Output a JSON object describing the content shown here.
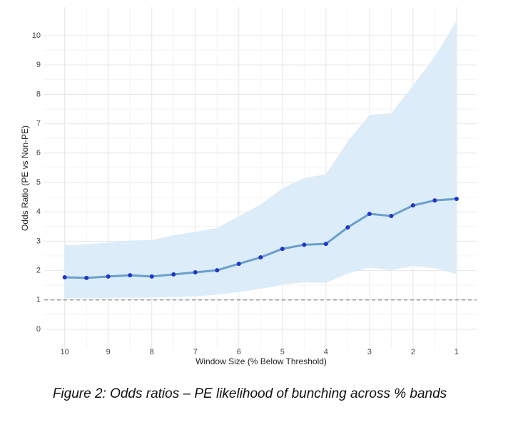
{
  "chart_data": {
    "type": "line",
    "x_label": "Window Size (% Below Threshold)",
    "y_label": "Odds Ratio (PE vs Non-PE)",
    "caption": "Figure 2: Odds ratios – PE likelihood of bunching across % bands",
    "x": [
      10,
      9.5,
      9,
      8.5,
      8,
      7.5,
      7,
      6.5,
      6,
      5.5,
      5,
      4.5,
      4,
      3.5,
      3,
      2.5,
      2,
      1.5,
      1
    ],
    "values": [
      1.77,
      1.75,
      1.8,
      1.84,
      1.8,
      1.87,
      1.94,
      2.01,
      2.23,
      2.45,
      2.74,
      2.88,
      2.91,
      3.47,
      3.93,
      3.86,
      4.22,
      4.39,
      4.44
    ],
    "upper": [
      2.86,
      2.9,
      2.95,
      3.02,
      3.04,
      3.2,
      3.32,
      3.45,
      3.85,
      4.25,
      4.8,
      5.15,
      5.28,
      6.4,
      7.3,
      7.35,
      8.3,
      9.3,
      10.5
    ],
    "lower": [
      1.06,
      1.06,
      1.07,
      1.08,
      1.08,
      1.1,
      1.12,
      1.18,
      1.27,
      1.38,
      1.52,
      1.6,
      1.58,
      1.9,
      2.1,
      2.02,
      2.15,
      2.08,
      1.88
    ],
    "color": "#6a9fca",
    "point_color": "#2233cc",
    "band_color": "#dcecf8",
    "reference_line": 1,
    "xlim": [
      10.47,
      0.54
    ],
    "xticks": [
      10,
      9,
      8,
      7,
      6,
      5,
      4,
      3,
      2,
      1
    ],
    "ylim": [
      -0.68,
      10.97
    ],
    "yticks": [
      0,
      1,
      2,
      3,
      4,
      5,
      6,
      7,
      8,
      9,
      10
    ],
    "grid": true
  }
}
